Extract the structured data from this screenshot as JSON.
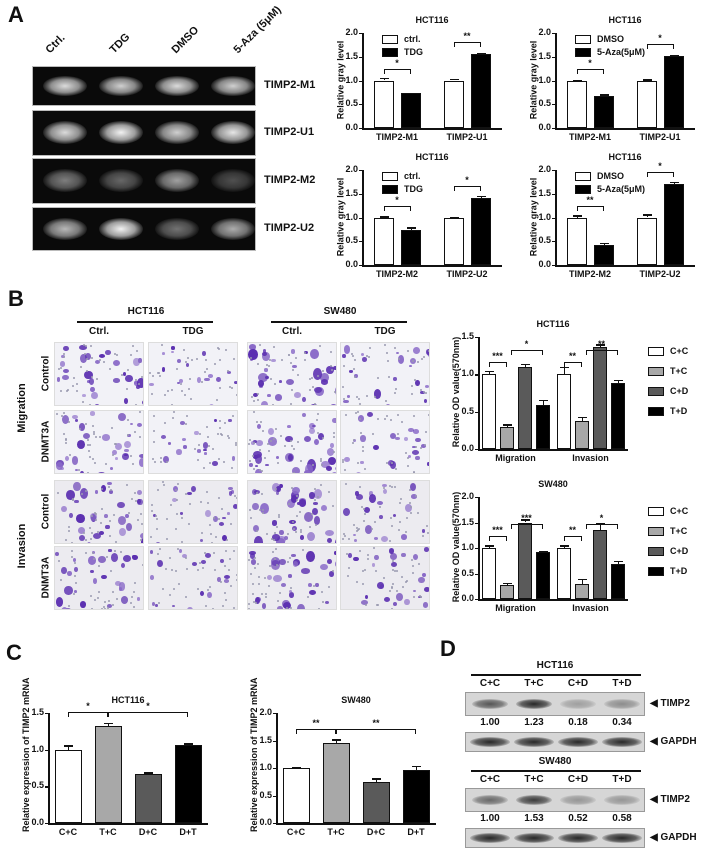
{
  "panels": {
    "A": {
      "letter": "A",
      "gel": {
        "lanes": [
          "Ctrl.",
          "TDG",
          "DMSO",
          "5-Aza (5μM)"
        ],
        "rows": [
          {
            "label": "TIMP2-M1",
            "intensity": [
              0.9,
              0.85,
              0.9,
              0.85
            ]
          },
          {
            "label": "TIMP2-U1",
            "intensity": [
              0.9,
              1.0,
              0.85,
              0.95
            ]
          },
          {
            "label": "TIMP2-M2",
            "intensity": [
              0.5,
              0.4,
              0.65,
              0.3
            ]
          },
          {
            "label": "TIMP2-U2",
            "intensity": [
              0.75,
              1.0,
              0.45,
              0.7
            ]
          }
        ]
      }
    },
    "B": {
      "letter": "B",
      "cell_lines": [
        "HCT116",
        "SW480"
      ],
      "columns": [
        "Ctrl.",
        "TDG",
        "Ctrl.",
        "TDG"
      ],
      "groups": [
        "Migration",
        "Invasion"
      ],
      "rows": [
        "Control",
        "DNMT3A",
        "Control",
        "DNMT3A"
      ]
    },
    "C": {
      "letter": "C"
    },
    "D": {
      "letter": "D",
      "blots": [
        {
          "title": "HCT116",
          "lanes": [
            "C+C",
            "T+C",
            "C+D",
            "T+D"
          ],
          "target": "TIMP2",
          "loading": "GAPDH",
          "quant": [
            "1.00",
            "1.23",
            "0.18",
            "0.34"
          ],
          "intensity": [
            0.7,
            0.95,
            0.3,
            0.4
          ]
        },
        {
          "title": "SW480",
          "lanes": [
            "C+C",
            "T+C",
            "C+D",
            "T+D"
          ],
          "target": "TIMP2",
          "loading": "GAPDH",
          "quant": [
            "1.00",
            "1.53",
            "0.52",
            "0.58"
          ],
          "intensity": [
            0.6,
            0.85,
            0.35,
            0.35
          ]
        }
      ]
    }
  },
  "chart_data": [
    {
      "id": "A1",
      "type": "bar",
      "title": "HCT116",
      "ylabel": "Relative gray level",
      "ylim": [
        0,
        2.0
      ],
      "yticks": [
        "0.0",
        "0.5",
        "1.0",
        "1.5",
        "2.0"
      ],
      "categories": [
        "TIMP2-M1",
        "TIMP2-U1"
      ],
      "series": [
        {
          "name": "ctrl.",
          "color": "#ffffff",
          "values": [
            1.0,
            1.0
          ],
          "errors": [
            0.06,
            0.04
          ]
        },
        {
          "name": "TDG",
          "color": "#000000",
          "values": [
            0.73,
            1.55
          ],
          "errors": [
            0.01,
            0.03
          ]
        }
      ],
      "significance": [
        "*",
        "**"
      ]
    },
    {
      "id": "A2",
      "type": "bar",
      "title": "HCT116",
      "ylabel": "Relative gray level",
      "ylim": [
        0,
        2.0
      ],
      "yticks": [
        "0.0",
        "0.5",
        "1.0",
        "1.5",
        "2.0"
      ],
      "categories": [
        "TIMP2-M1",
        "TIMP2-U1"
      ],
      "series": [
        {
          "name": "DMSO",
          "color": "#ffffff",
          "values": [
            1.0,
            1.0
          ],
          "errors": [
            0.01,
            0.03
          ]
        },
        {
          "name": "5-Aza(5μM)",
          "color": "#000000",
          "values": [
            0.67,
            1.51
          ],
          "errors": [
            0.04,
            0.02
          ]
        }
      ],
      "significance": [
        "*",
        "*"
      ]
    },
    {
      "id": "A3",
      "type": "bar",
      "title": "HCT116",
      "ylabel": "Relative gray level",
      "ylim": [
        0,
        2.0
      ],
      "yticks": [
        "0.0",
        "0.5",
        "1.0",
        "1.5",
        "2.0"
      ],
      "categories": [
        "TIMP2-M2",
        "TIMP2-U2"
      ],
      "series": [
        {
          "name": "ctrl.",
          "color": "#ffffff",
          "values": [
            1.0,
            1.0
          ],
          "errors": [
            0.03,
            0.01
          ]
        },
        {
          "name": "TDG",
          "color": "#000000",
          "values": [
            0.74,
            1.41
          ],
          "errors": [
            0.05,
            0.05
          ]
        }
      ],
      "significance": [
        "*",
        "*"
      ]
    },
    {
      "id": "A4",
      "type": "bar",
      "title": "HCT116",
      "ylabel": "Relative gray level",
      "ylim": [
        0,
        2.0
      ],
      "yticks": [
        "0.0",
        "0.5",
        "1.0",
        "1.5",
        "2.0"
      ],
      "categories": [
        "TIMP2-M2",
        "TIMP2-U2"
      ],
      "series": [
        {
          "name": "DMSO",
          "color": "#ffffff",
          "values": [
            1.0,
            1.0
          ],
          "errors": [
            0.05,
            0.07
          ]
        },
        {
          "name": "5-Aza(5μM)",
          "color": "#000000",
          "values": [
            0.42,
            1.71
          ],
          "errors": [
            0.05,
            0.04
          ]
        }
      ],
      "significance": [
        "**",
        "*"
      ]
    },
    {
      "id": "B1",
      "type": "bar",
      "title": "HCT116",
      "ylabel": "Relative OD value(570nm)",
      "ylim": [
        0,
        1.5
      ],
      "yticks": [
        "0.0",
        "0.5",
        "1.0",
        "1.5"
      ],
      "categories": [
        "Migration",
        "Invasion"
      ],
      "series": [
        {
          "name": "C+C",
          "color": "#ffffff",
          "values": [
            1.0,
            1.0
          ],
          "errors": [
            0.05,
            0.1
          ]
        },
        {
          "name": "T+C",
          "color": "#a8a8a8",
          "values": [
            0.3,
            0.38
          ],
          "errors": [
            0.03,
            0.05
          ]
        },
        {
          "name": "C+D",
          "color": "#5a5a5a",
          "values": [
            1.1,
            1.37
          ],
          "errors": [
            0.04,
            0.03
          ]
        },
        {
          "name": "T+D",
          "color": "#000000",
          "values": [
            0.59,
            0.89
          ],
          "errors": [
            0.07,
            0.04
          ]
        }
      ],
      "significance": [
        [
          "***",
          "*"
        ],
        [
          "**",
          "**"
        ]
      ]
    },
    {
      "id": "B2",
      "type": "bar",
      "title": "SW480",
      "ylabel": "Relative OD value(570nm)",
      "ylim": [
        0,
        2.0
      ],
      "yticks": [
        "0.0",
        "0.5",
        "1.0",
        "1.5",
        "2.0"
      ],
      "categories": [
        "Migration",
        "Invasion"
      ],
      "series": [
        {
          "name": "C+C",
          "color": "#ffffff",
          "values": [
            1.0,
            1.0
          ],
          "errors": [
            0.05,
            0.05
          ]
        },
        {
          "name": "T+C",
          "color": "#a8a8a8",
          "values": [
            0.27,
            0.3
          ],
          "errors": [
            0.05,
            0.1
          ]
        },
        {
          "name": "C+D",
          "color": "#5a5a5a",
          "values": [
            1.5,
            1.35
          ],
          "errors": [
            0.06,
            0.14
          ]
        },
        {
          "name": "T+D",
          "color": "#000000",
          "values": [
            0.92,
            0.68
          ],
          "errors": [
            0.02,
            0.07
          ]
        }
      ],
      "significance": [
        [
          "***",
          "***"
        ],
        [
          "**",
          "*"
        ]
      ]
    },
    {
      "id": "C1",
      "type": "bar",
      "title": "HCT116",
      "ylabel": "Relative expression of TIMP2 mRNA",
      "ylim": [
        0,
        1.5
      ],
      "yticks": [
        "0.0",
        "0.5",
        "1.0",
        "1.5"
      ],
      "categories": [
        "C+C",
        "T+C",
        "D+C",
        "D+T"
      ],
      "values": [
        1.0,
        1.32,
        0.67,
        1.07
      ],
      "errors": [
        0.06,
        0.05,
        0.02,
        0.02
      ],
      "colors": [
        "#ffffff",
        "#a8a8a8",
        "#5a5a5a",
        "#000000"
      ],
      "significance": [
        {
          "from": "C+C",
          "to": "T+C",
          "label": "*"
        },
        {
          "from": "T+C",
          "to": "D+T",
          "label": "*"
        }
      ]
    },
    {
      "id": "C2",
      "type": "bar",
      "title": "SW480",
      "ylabel": "Relative expression of TIMP2 mRNA",
      "ylim": [
        0,
        2.0
      ],
      "yticks": [
        "0.0",
        "0.5",
        "1.0",
        "1.5",
        "2.0"
      ],
      "categories": [
        "C+C",
        "T+C",
        "D+C",
        "D+T"
      ],
      "values": [
        1.0,
        1.46,
        0.74,
        0.96
      ],
      "errors": [
        0.02,
        0.06,
        0.07,
        0.08
      ],
      "colors": [
        "#ffffff",
        "#a8a8a8",
        "#5a5a5a",
        "#000000"
      ],
      "significance": [
        {
          "from": "C+C",
          "to": "T+C",
          "label": "**"
        },
        {
          "from": "T+C",
          "to": "D+T",
          "label": "**"
        }
      ]
    }
  ]
}
